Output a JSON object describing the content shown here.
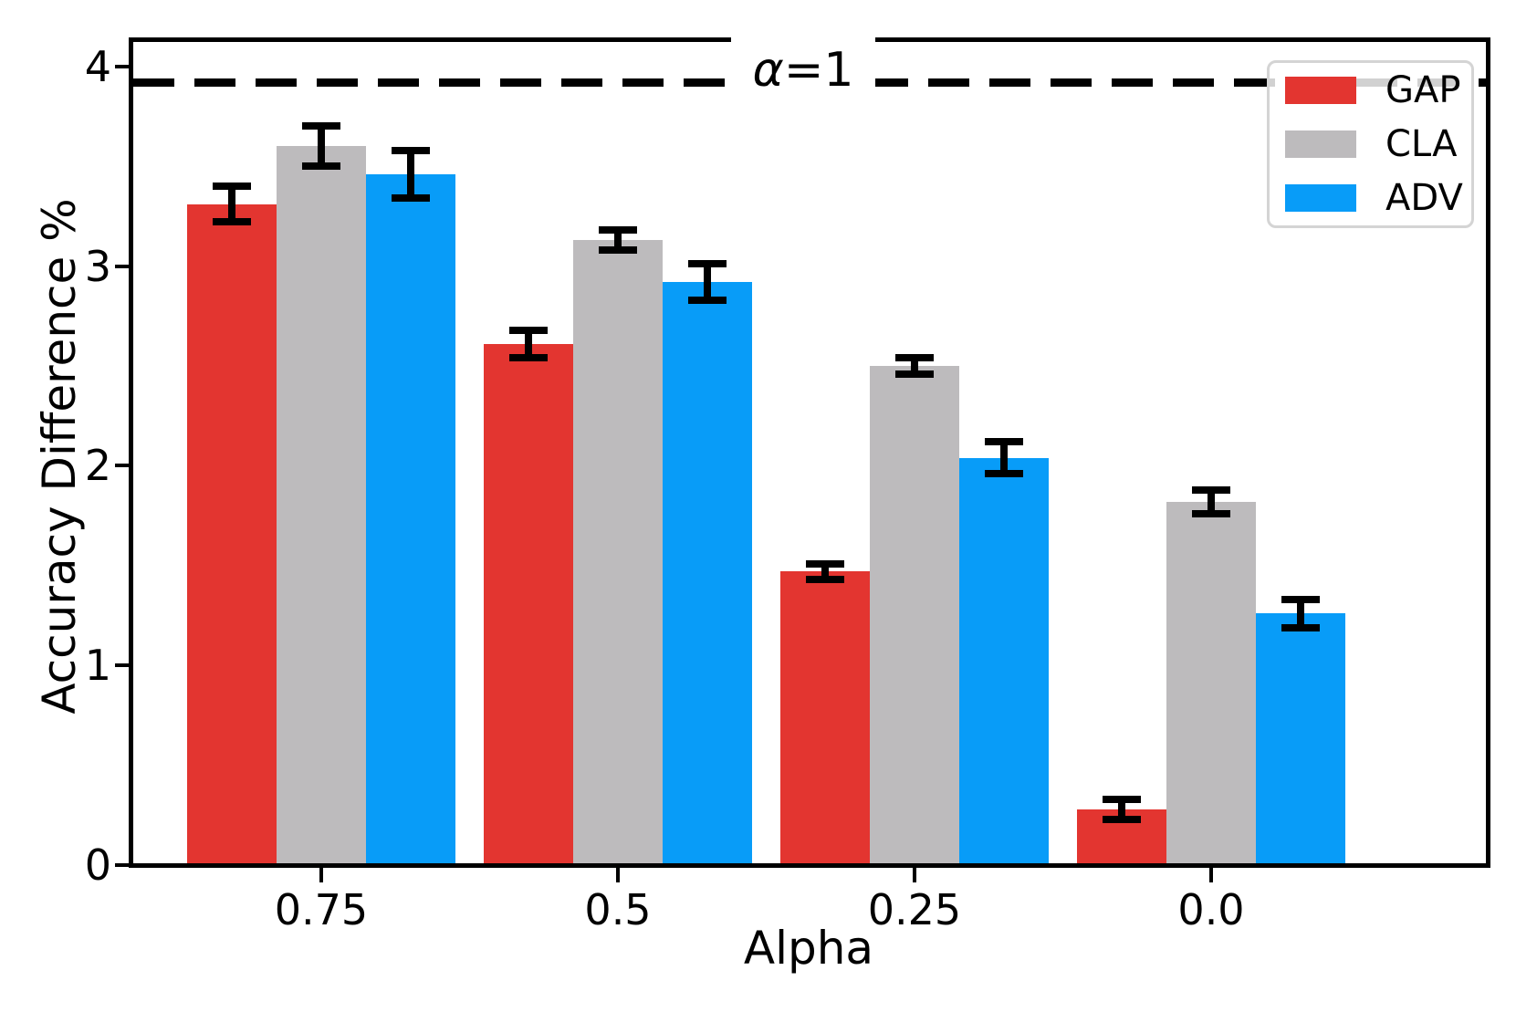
{
  "chart_data": {
    "type": "bar",
    "title": "",
    "xlabel": "Alpha",
    "ylabel": "Accuracy Difference %",
    "categories": [
      "0.75",
      "0.5",
      "0.25",
      "0.0"
    ],
    "series": [
      {
        "name": "GAP",
        "color": "#e33530",
        "values": [
          3.31,
          2.61,
          1.47,
          0.28
        ],
        "errors": [
          0.09,
          0.07,
          0.04,
          0.05
        ]
      },
      {
        "name": "CLA",
        "color": "#bdbbbd",
        "values": [
          3.6,
          3.13,
          2.5,
          1.82
        ],
        "errors": [
          0.1,
          0.05,
          0.04,
          0.06
        ]
      },
      {
        "name": "ADV",
        "color": "#089cf8",
        "values": [
          3.46,
          2.92,
          2.04,
          1.26
        ],
        "errors": [
          0.12,
          0.09,
          0.08,
          0.07
        ]
      }
    ],
    "reference_line": {
      "value": 3.92,
      "label": "α=1",
      "style": "dashed",
      "color": "#000000"
    },
    "ylim": [
      0,
      4.14
    ],
    "yticks": [
      0,
      1,
      2,
      3,
      4
    ],
    "legend_position": "upper right",
    "grid": false,
    "error_bar_color": "#000000",
    "background_color": "#ffffff"
  },
  "reference_label": {
    "alpha": "α",
    "equals_value": "=1"
  }
}
